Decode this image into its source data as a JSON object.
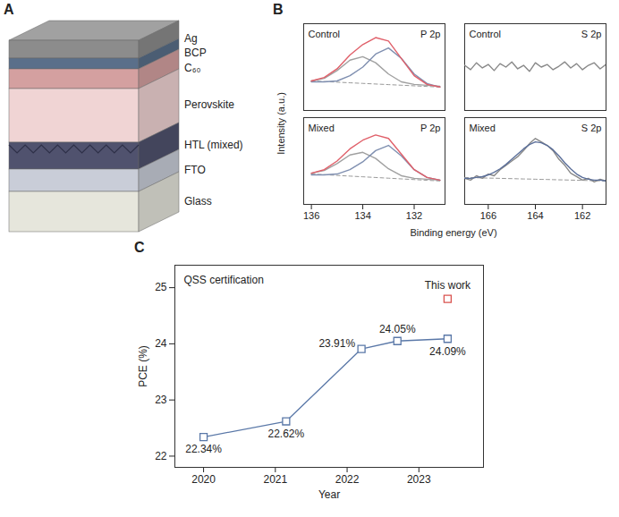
{
  "diagram": {
    "panel": "A",
    "layers": [
      "Ag",
      "BCP",
      "C₆₀",
      "Perovskite",
      "HTL (mixed)",
      "FTO",
      "Glass"
    ]
  },
  "chart_data": [
    {
      "type": "line",
      "panel": "B",
      "ylabel": "Intensity (a.u.)",
      "xlabel": "Binding energy (eV)",
      "tick_labels": "x",
      "ylim": [
        0,
        1
      ],
      "columns": [
        {
          "xlim": [
            136.3,
            130.8
          ],
          "xticks": [
            136,
            134,
            132
          ]
        },
        {
          "xlim": [
            167,
            161
          ],
          "xticks": [
            166,
            164,
            162
          ]
        }
      ],
      "rows": [
        {
          "panels": [
            {
              "annotations": [
                "Control",
                "P 2p"
              ],
              "x": [
                136,
                135.5,
                135,
                134.5,
                134,
                133.5,
                133,
                132.5,
                132,
                131.5,
                131
              ],
              "series": [
                {
                  "color": "#999999",
                  "line_style": "dashed",
                  "values": [
                    0.34,
                    0.333,
                    0.326,
                    0.319,
                    0.312,
                    0.305,
                    0.298,
                    0.291,
                    0.284,
                    0.277,
                    0.27
                  ]
                },
                {
                  "color": "#a0a0a0",
                  "line_style": "solid",
                  "values": [
                    0.34,
                    0.37,
                    0.46,
                    0.58,
                    0.62,
                    0.55,
                    0.42,
                    0.33,
                    0.3,
                    0.29,
                    0.28
                  ]
                },
                {
                  "color": "#7f8fb0",
                  "line_style": "solid",
                  "values": [
                    0.33,
                    0.33,
                    0.34,
                    0.4,
                    0.5,
                    0.65,
                    0.72,
                    0.6,
                    0.42,
                    0.31,
                    0.27
                  ]
                },
                {
                  "color": "#e0606a",
                  "line_style": "solid",
                  "values": [
                    0.34,
                    0.38,
                    0.48,
                    0.64,
                    0.76,
                    0.84,
                    0.8,
                    0.6,
                    0.4,
                    0.3,
                    0.27
                  ]
                }
              ]
            },
            {
              "annotations": [
                "Control",
                "S 2p"
              ],
              "x": [
                167,
                166.75,
                166.5,
                166.25,
                166,
                165.75,
                165.5,
                165.25,
                165,
                164.75,
                164.5,
                164.25,
                164,
                163.75,
                163.5,
                163.25,
                163,
                162.75,
                162.5,
                162.25,
                162,
                161.75,
                161.5,
                161.25,
                161
              ],
              "series": [
                {
                  "color": "#888888",
                  "line_style": "solid",
                  "values": [
                    0.52,
                    0.47,
                    0.55,
                    0.49,
                    0.53,
                    0.46,
                    0.54,
                    0.5,
                    0.56,
                    0.48,
                    0.52,
                    0.45,
                    0.55,
                    0.5,
                    0.53,
                    0.47,
                    0.51,
                    0.56,
                    0.49,
                    0.54,
                    0.47,
                    0.52,
                    0.55,
                    0.48,
                    0.53
                  ]
                }
              ]
            }
          ]
        },
        {
          "panels": [
            {
              "annotations": [
                "Mixed",
                "P 2p"
              ],
              "x": [
                136,
                135.5,
                135,
                134.5,
                134,
                133.5,
                133,
                132.5,
                132,
                131.5,
                131
              ],
              "series": [
                {
                  "color": "#999999",
                  "line_style": "dashed",
                  "values": [
                    0.35,
                    0.342,
                    0.334,
                    0.326,
                    0.318,
                    0.31,
                    0.302,
                    0.294,
                    0.286,
                    0.278,
                    0.27
                  ]
                },
                {
                  "color": "#a0a0a0",
                  "line_style": "solid",
                  "values": [
                    0.36,
                    0.39,
                    0.47,
                    0.57,
                    0.6,
                    0.53,
                    0.41,
                    0.33,
                    0.3,
                    0.29,
                    0.28
                  ]
                },
                {
                  "color": "#7f8fb0",
                  "line_style": "solid",
                  "values": [
                    0.34,
                    0.34,
                    0.35,
                    0.4,
                    0.49,
                    0.62,
                    0.68,
                    0.56,
                    0.4,
                    0.31,
                    0.28
                  ]
                },
                {
                  "color": "#e0606a",
                  "line_style": "solid",
                  "values": [
                    0.36,
                    0.4,
                    0.5,
                    0.64,
                    0.74,
                    0.8,
                    0.76,
                    0.58,
                    0.4,
                    0.31,
                    0.28
                  ]
                }
              ]
            },
            {
              "annotations": [
                "Mixed",
                "S 2p"
              ],
              "x": [
                167,
                166.75,
                166.5,
                166.25,
                166,
                165.75,
                165.5,
                165.25,
                165,
                164.75,
                164.5,
                164.25,
                164,
                163.75,
                163.5,
                163.25,
                163,
                162.75,
                162.5,
                162.25,
                162,
                161.75,
                161.5,
                161.25,
                161
              ],
              "series": [
                {
                  "color": "#999999",
                  "line_style": "dashed",
                  "values": [
                    0.31,
                    0.308,
                    0.307,
                    0.305,
                    0.303,
                    0.302,
                    0.3,
                    0.298,
                    0.297,
                    0.295,
                    0.293,
                    0.292,
                    0.29,
                    0.288,
                    0.287,
                    0.285,
                    0.283,
                    0.282,
                    0.28,
                    0.278,
                    0.277,
                    0.275,
                    0.273,
                    0.272,
                    0.27
                  ]
                },
                {
                  "color": "#888888",
                  "line_style": "solid",
                  "values": [
                    0.3,
                    0.28,
                    0.33,
                    0.3,
                    0.35,
                    0.33,
                    0.4,
                    0.45,
                    0.5,
                    0.55,
                    0.62,
                    0.7,
                    0.76,
                    0.72,
                    0.68,
                    0.62,
                    0.52,
                    0.45,
                    0.36,
                    0.32,
                    0.28,
                    0.3,
                    0.26,
                    0.29,
                    0.27
                  ]
                },
                {
                  "color": "#5b6f9a",
                  "line_style": "solid",
                  "values": [
                    0.3,
                    0.3,
                    0.31,
                    0.32,
                    0.34,
                    0.37,
                    0.41,
                    0.46,
                    0.52,
                    0.58,
                    0.64,
                    0.69,
                    0.72,
                    0.71,
                    0.68,
                    0.63,
                    0.56,
                    0.48,
                    0.41,
                    0.35,
                    0.31,
                    0.29,
                    0.28,
                    0.28,
                    0.27
                  ]
                }
              ]
            }
          ]
        }
      ]
    },
    {
      "type": "line",
      "panel": "C",
      "title": "QSS certification",
      "xlabel": "Year",
      "ylabel": "PCE (%)",
      "x": [
        2020.0,
        2021.15,
        2022.2,
        2022.7,
        2023.4
      ],
      "xlim": [
        2019.6,
        2023.9
      ],
      "xticks": [
        2020,
        2021,
        2022,
        2023
      ],
      "ylim": [
        21.8,
        25.4
      ],
      "yticks": [
        22,
        23,
        24,
        25
      ],
      "data_labels": true,
      "series": [
        {
          "color": "#5a78a8",
          "marker": "square",
          "values": [
            22.34,
            22.62,
            23.91,
            24.05,
            24.09
          ],
          "value_labels": [
            "22.34%",
            "22.62%",
            "23.91%",
            "24.05%",
            "24.09%"
          ]
        },
        {
          "name": "This work",
          "color": "#d9534f",
          "marker": "square",
          "values": [
            null,
            null,
            null,
            null,
            24.8
          ]
        }
      ]
    }
  ]
}
